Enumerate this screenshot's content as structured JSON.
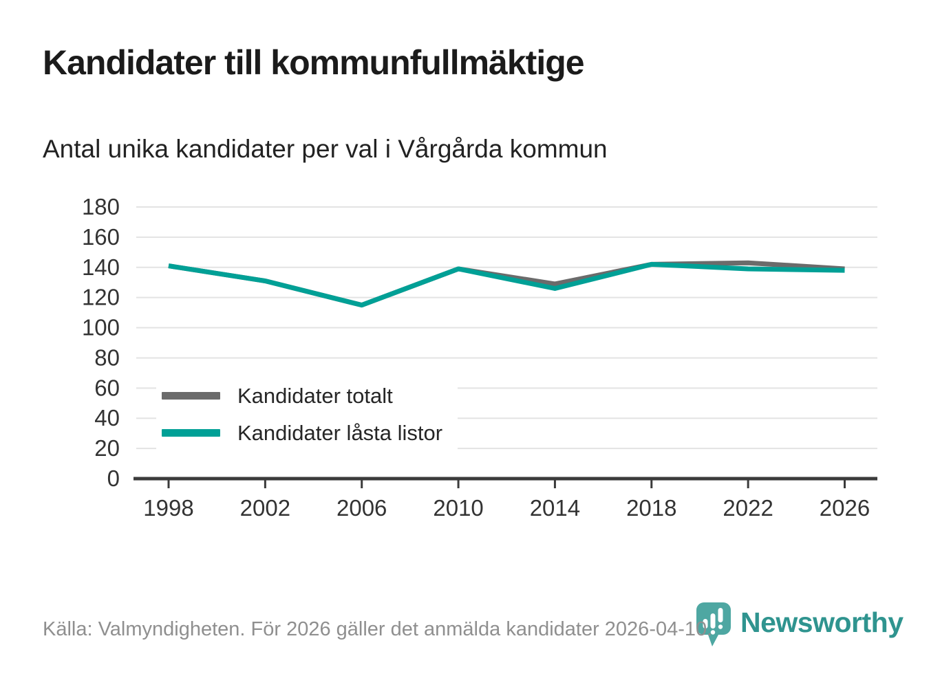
{
  "title": "Kandidater till kommunfullmäktige",
  "subtitle": "Antal unika kandidater per val i Vårgårda kommun",
  "footer": {
    "source_note": "Källa: Valmyndigheten. För 2026 gäller det anmälda kandidater 2026-04-10."
  },
  "branding": {
    "wordmark": "Newsworthy",
    "logo_icon": "newsworthy-bubble-chart-icon",
    "brand_text_color": "#2f948f",
    "mark_color": "#4ea7a2"
  },
  "chart_data": {
    "type": "line",
    "x": [
      "1998",
      "2002",
      "2006",
      "2010",
      "2014",
      "2018",
      "2022",
      "2026"
    ],
    "series": [
      {
        "name": "Kandidater totalt",
        "color": "#6b6b6b",
        "values": [
          141,
          131,
          115,
          139,
          129,
          142,
          143,
          139
        ]
      },
      {
        "name": "Kandidater låsta listor",
        "color": "#00a096",
        "values": [
          141,
          131,
          115,
          139,
          126,
          142,
          139,
          138
        ]
      }
    ],
    "ylim": [
      0,
      180
    ],
    "ytick_step": 20,
    "grid": true,
    "legend_position": "inside-left",
    "grid_color": "#e3e3e3",
    "axis_color": "#3b3b3b",
    "tick_label_color": "#333333",
    "line_width": 7
  }
}
